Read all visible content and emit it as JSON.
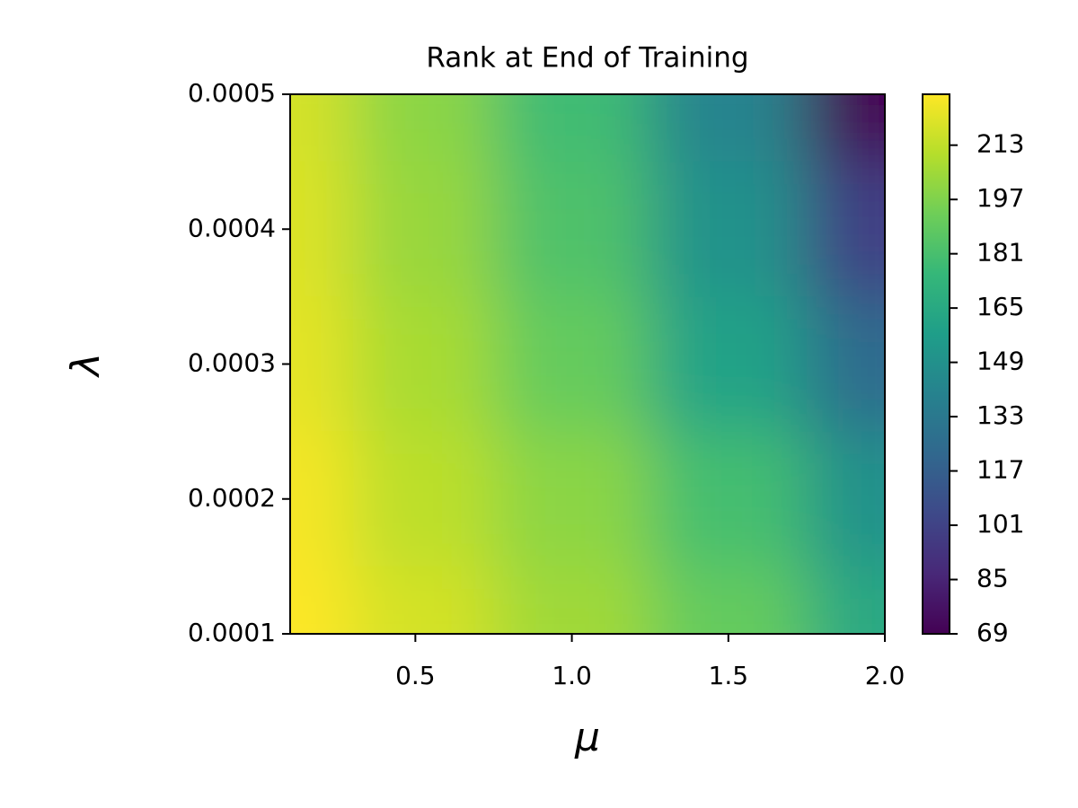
{
  "chart_data": {
    "type": "heatmap",
    "title": "Rank at End of Training",
    "x_label": "μ",
    "y_label": "λ",
    "x": [
      0.1,
      0.5,
      1.0,
      1.5,
      2.0
    ],
    "y": [
      0.0001,
      0.0002,
      0.0003,
      0.0004,
      0.0005
    ],
    "z": [
      [
        228,
        218,
        205,
        190,
        165
      ],
      [
        226,
        212,
        200,
        180,
        150
      ],
      [
        222,
        207,
        190,
        160,
        125
      ],
      [
        220,
        203,
        183,
        150,
        100
      ],
      [
        218,
        200,
        178,
        140,
        69
      ]
    ],
    "xlim": [
      0.1,
      2.0
    ],
    "ylim": [
      0.0001,
      0.0005
    ],
    "xticks": [
      0.5,
      {
        "value": 1,
        "label": "1.0"
      },
      1.5,
      {
        "value": 2,
        "label": "2.0"
      }
    ],
    "yticks": [
      0.0001,
      0.0002,
      0.0003,
      0.0004,
      0.0005
    ],
    "colormap": "viridis",
    "colorbar": {
      "lim": [
        69,
        228
      ],
      "ticks": [
        69,
        85,
        101,
        117,
        133,
        149,
        165,
        181,
        197,
        213
      ]
    }
  }
}
